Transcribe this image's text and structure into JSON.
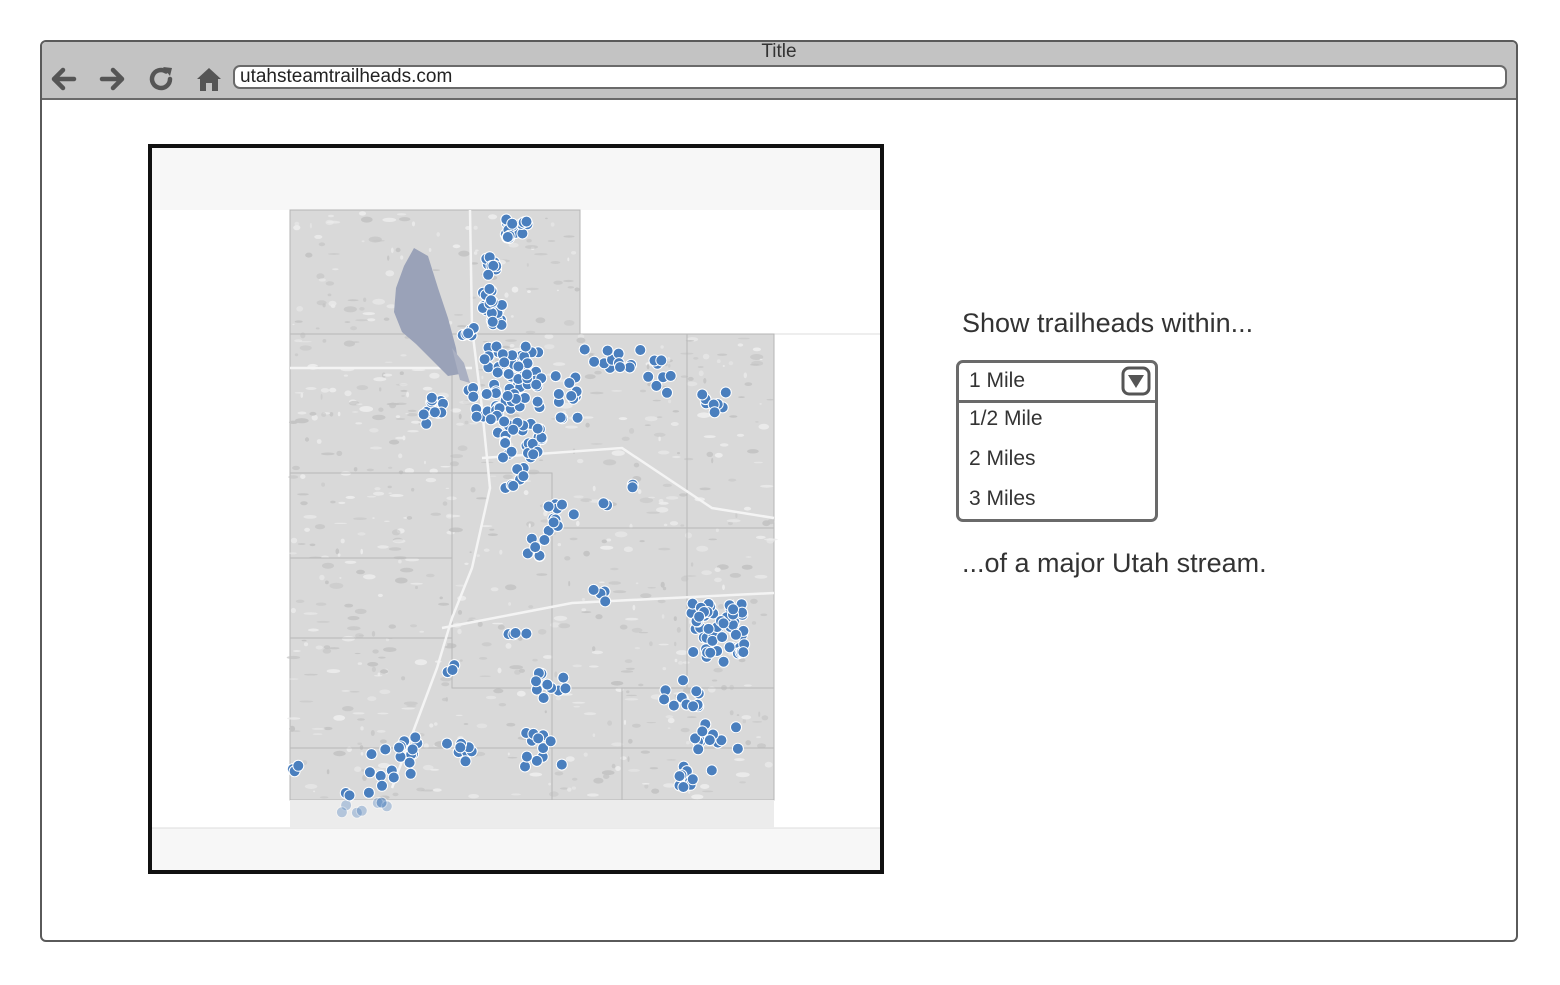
{
  "window": {
    "title": "Title",
    "url": "utahsteamtrailheads.com"
  },
  "toolbar": {
    "back_icon": "arrow-left-icon",
    "forward_icon": "arrow-right-icon",
    "reload_icon": "reload-icon",
    "home_icon": "home-icon"
  },
  "map": {
    "marker_color": "#4a7fbe",
    "lake_color": "#9aa2b8"
  },
  "filter": {
    "prompt_before": "Show trailheads within...",
    "selected": "1 Mile",
    "options": [
      "1/2 Mile",
      "2 Miles",
      "3 Miles"
    ],
    "prompt_after": "...of a major Utah stream."
  },
  "colors": {
    "chrome": "#c3c3c3",
    "border": "#5a5a5a",
    "text": "#333333"
  }
}
